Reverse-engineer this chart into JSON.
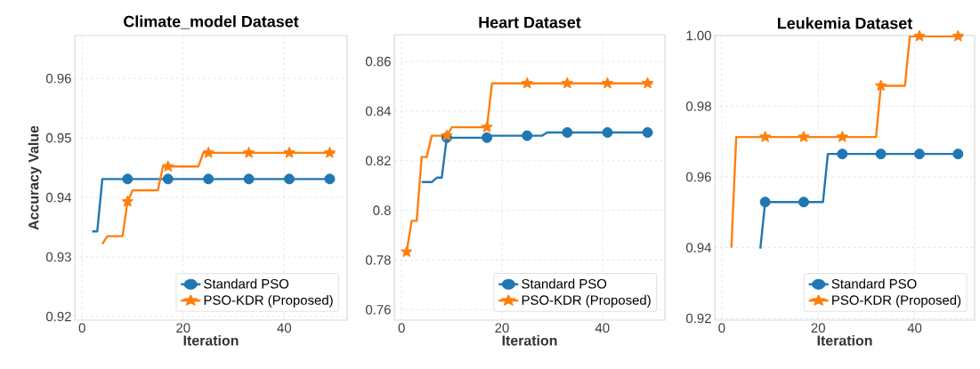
{
  "chart_data": [
    {
      "type": "line",
      "title": "Climate_model Dataset",
      "xlabel": "Iteration",
      "ylabel": "Accuracy Value",
      "x": [
        2,
        3,
        4,
        5,
        6,
        7,
        8,
        9,
        10,
        11,
        12,
        13,
        14,
        15,
        16,
        17,
        18,
        19,
        20,
        21,
        22,
        23,
        24,
        25,
        26,
        27,
        28,
        29,
        30,
        31,
        32,
        33,
        34,
        35,
        36,
        37,
        38,
        39,
        40,
        41,
        42,
        43,
        44,
        45,
        46,
        47,
        48,
        49,
        50
      ],
      "xlim": [
        -1.45,
        52.45
      ],
      "xticks": [
        0,
        20,
        40
      ],
      "ylim": [
        0.9194,
        0.9672
      ],
      "yticks": [
        0.92,
        0.93,
        0.94,
        0.95,
        0.96
      ],
      "grid": true,
      "legend": "bottom right",
      "series": [
        {
          "name": "Standard PSO",
          "color": "#1f77b4",
          "values": [
            0.9343,
            0.9343,
            0.9431,
            0.9431,
            0.9431,
            0.9431,
            0.9431,
            0.9431,
            0.9431,
            0.9431,
            0.9431,
            0.9431,
            0.9431,
            0.9431,
            0.9431,
            0.9431,
            0.9431,
            0.9431,
            0.9431,
            0.9431,
            0.9431,
            0.9431,
            0.9431,
            0.9431,
            0.9431,
            0.9431,
            0.9431,
            0.9431,
            0.9431,
            0.9431,
            0.9431,
            0.9431,
            0.9431,
            0.9431,
            0.9431,
            0.9431,
            0.9431,
            0.9431,
            0.9431,
            0.9431,
            0.9431,
            0.9431,
            0.9431,
            0.9431,
            0.9431,
            0.9431,
            0.9431,
            0.9431,
            0.9431
          ]
        },
        {
          "name": "PSO-KDR (Proposed)",
          "color": "#ff7f0e",
          "values": [
            null,
            null,
            0.9322,
            0.9335,
            0.9335,
            0.9335,
            0.9335,
            0.9393,
            0.9412,
            0.9412,
            0.9412,
            0.9412,
            0.9412,
            0.9412,
            0.9452,
            0.9452,
            0.9452,
            0.9452,
            0.9452,
            0.9452,
            0.9452,
            0.9452,
            0.9475,
            0.9475,
            0.9475,
            0.9475,
            0.9475,
            0.9475,
            0.9475,
            0.9475,
            0.9475,
            0.9475,
            0.9475,
            0.9475,
            0.9475,
            0.9475,
            0.9475,
            0.9475,
            0.9475,
            0.9475,
            0.9475,
            0.9475,
            0.9475,
            0.9475,
            0.9475,
            0.9475,
            0.9475,
            0.9475,
            0.9475
          ]
        },
        {
          "type": "scatter",
          "color": "#1f77b4",
          "marker": "circle",
          "x": [
            9,
            17,
            25,
            33,
            41,
            49
          ],
          "values": [
            0.9431,
            0.9431,
            0.9431,
            0.9431,
            0.9431,
            0.9431
          ]
        },
        {
          "type": "scatter",
          "color": "#ff7f0e",
          "marker": "star",
          "x": [
            9,
            17,
            25,
            33,
            41,
            49
          ],
          "values": [
            0.9393,
            0.9452,
            0.9475,
            0.9475,
            0.9475,
            0.9475
          ]
        }
      ]
    },
    {
      "type": "line",
      "title": "Heart Dataset",
      "xlabel": "Iteration",
      "x": [
        1,
        2,
        3,
        4,
        5,
        6,
        7,
        8,
        9,
        10,
        11,
        12,
        13,
        14,
        15,
        16,
        17,
        18,
        19,
        20,
        21,
        22,
        23,
        24,
        25,
        26,
        27,
        28,
        29,
        30,
        31,
        32,
        33,
        34,
        35,
        36,
        37,
        38,
        39,
        40,
        41,
        42,
        43,
        44,
        45,
        46,
        47,
        48,
        49,
        50
      ],
      "xlim": [
        -1.45,
        52.45
      ],
      "xticks": [
        0,
        20,
        40
      ],
      "ylim": [
        0.7558,
        0.8708
      ],
      "yticks": [
        0.76,
        0.78,
        0.8,
        0.82,
        0.84,
        0.86
      ],
      "grid": true,
      "legend": "bottom right",
      "series": [
        {
          "name": "Standard PSO",
          "color": "#1f77b4",
          "values": [
            null,
            null,
            null,
            0.8114,
            0.8114,
            0.8114,
            0.8132,
            0.8132,
            0.8293,
            0.8293,
            0.8293,
            0.8293,
            0.8293,
            0.8293,
            0.8293,
            0.8293,
            0.8293,
            0.8301,
            0.8301,
            0.8301,
            0.8301,
            0.8301,
            0.8301,
            0.8301,
            0.8301,
            0.8301,
            0.8301,
            0.8301,
            0.8314,
            0.8314,
            0.8314,
            0.8314,
            0.8314,
            0.8314,
            0.8314,
            0.8314,
            0.8314,
            0.8314,
            0.8314,
            0.8314,
            0.8314,
            0.8314,
            0.8314,
            0.8314,
            0.8314,
            0.8314,
            0.8314,
            0.8314,
            0.8314,
            0.8314
          ]
        },
        {
          "name": "PSO-KDR (Proposed)",
          "color": "#ff7f0e",
          "values": [
            0.7833,
            0.7958,
            0.7958,
            0.8215,
            0.8215,
            0.8301,
            0.8301,
            0.8301,
            0.8301,
            0.8335,
            0.8335,
            0.8335,
            0.8335,
            0.8335,
            0.8335,
            0.8335,
            0.8335,
            0.8512,
            0.8512,
            0.8512,
            0.8512,
            0.8512,
            0.8512,
            0.8512,
            0.8512,
            0.8512,
            0.8512,
            0.8512,
            0.8512,
            0.8512,
            0.8512,
            0.8512,
            0.8512,
            0.8512,
            0.8512,
            0.8512,
            0.8512,
            0.8512,
            0.8512,
            0.8512,
            0.8512,
            0.8512,
            0.8512,
            0.8512,
            0.8512,
            0.8512,
            0.8512,
            0.8512,
            0.8512,
            0.8512
          ]
        },
        {
          "type": "scatter",
          "color": "#1f77b4",
          "marker": "circle",
          "x": [
            9,
            17,
            25,
            33,
            41,
            49
          ],
          "values": [
            0.8293,
            0.8293,
            0.8301,
            0.8314,
            0.8314,
            0.8314
          ]
        },
        {
          "type": "scatter",
          "color": "#ff7f0e",
          "marker": "star",
          "x": [
            1,
            9,
            17,
            25,
            33,
            41,
            49
          ],
          "values": [
            0.7833,
            0.8301,
            0.8335,
            0.8512,
            0.8512,
            0.8512,
            0.8512
          ]
        }
      ]
    },
    {
      "type": "line",
      "title": "Leukemia Dataset",
      "xlabel": "Iteration",
      "x": [
        2,
        3,
        4,
        5,
        6,
        7,
        8,
        9,
        10,
        11,
        12,
        13,
        14,
        15,
        16,
        17,
        18,
        19,
        20,
        21,
        22,
        23,
        24,
        25,
        26,
        27,
        28,
        29,
        30,
        31,
        32,
        33,
        34,
        35,
        36,
        37,
        38,
        39,
        40,
        41,
        42,
        43,
        44,
        45,
        46,
        47,
        48,
        49,
        50
      ],
      "xlim": [
        -1.45,
        52.45
      ],
      "xticks": [
        0,
        20,
        40
      ],
      "ylim": [
        0.9195,
        1.0
      ],
      "yticks": [
        0.92,
        0.94,
        0.96,
        0.98,
        {
          "value": 1.0,
          "label": "1.00"
        }
      ],
      "grid": true,
      "legend": "bottom right",
      "series": [
        {
          "name": "Standard PSO",
          "color": "#1f77b4",
          "values": [
            null,
            null,
            null,
            null,
            null,
            null,
            0.9397,
            0.9529,
            0.9529,
            0.9529,
            0.9529,
            0.9529,
            0.9529,
            0.9529,
            0.9529,
            0.9529,
            0.9529,
            0.9529,
            0.9529,
            0.9529,
            0.9665,
            0.9665,
            0.9665,
            0.9665,
            0.9665,
            0.9665,
            0.9665,
            0.9665,
            0.9665,
            0.9665,
            0.9665,
            0.9665,
            0.9665,
            0.9665,
            0.9665,
            0.9665,
            0.9665,
            0.9665,
            0.9665,
            0.9665,
            0.9665,
            0.9665,
            0.9665,
            0.9665,
            0.9665,
            0.9665,
            0.9665,
            0.9665,
            0.9665
          ]
        },
        {
          "name": "PSO-KDR (Proposed)",
          "color": "#ff7f0e",
          "values": [
            0.94,
            0.9713,
            0.9713,
            0.9713,
            0.9713,
            0.9713,
            0.9713,
            0.9713,
            0.9713,
            0.9713,
            0.9713,
            0.9713,
            0.9713,
            0.9713,
            0.9713,
            0.9713,
            0.9713,
            0.9713,
            0.9713,
            0.9713,
            0.9713,
            0.9713,
            0.9713,
            0.9713,
            0.9713,
            0.9713,
            0.9713,
            0.9713,
            0.9713,
            0.9713,
            0.9713,
            0.9858,
            0.9858,
            0.9858,
            0.9858,
            0.9858,
            0.9858,
            0.9998,
            0.9998,
            0.9998,
            0.9998,
            0.9998,
            0.9998,
            0.9998,
            0.9998,
            0.9998,
            0.9998,
            0.9998,
            0.9998
          ]
        },
        {
          "type": "scatter",
          "color": "#1f77b4",
          "marker": "circle",
          "x": [
            9,
            17,
            25,
            33,
            41,
            49
          ],
          "values": [
            0.9529,
            0.9529,
            0.9665,
            0.9665,
            0.9665,
            0.9665
          ]
        },
        {
          "type": "scatter",
          "color": "#ff7f0e",
          "marker": "star",
          "x": [
            9,
            17,
            25,
            33,
            41,
            49
          ],
          "values": [
            0.9713,
            0.9713,
            0.9713,
            0.9858,
            0.9998,
            0.9998
          ]
        }
      ]
    }
  ]
}
